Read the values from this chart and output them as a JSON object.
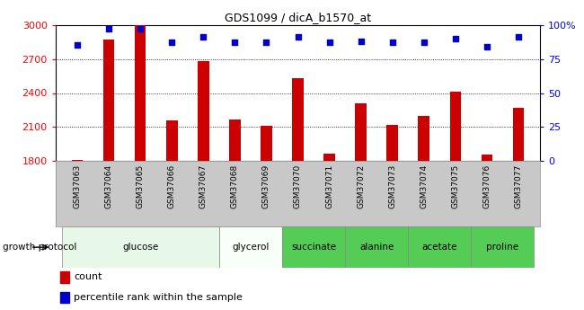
{
  "title": "GDS1099 / dicA_b1570_at",
  "samples": [
    "GSM37063",
    "GSM37064",
    "GSM37065",
    "GSM37066",
    "GSM37067",
    "GSM37068",
    "GSM37069",
    "GSM37070",
    "GSM37071",
    "GSM37072",
    "GSM37073",
    "GSM37074",
    "GSM37075",
    "GSM37076",
    "GSM37077"
  ],
  "counts": [
    1810,
    2870,
    3000,
    2160,
    2680,
    2170,
    2110,
    2530,
    1870,
    2310,
    2120,
    2200,
    2410,
    1855,
    2270
  ],
  "percentiles": [
    85,
    97,
    97,
    87,
    91,
    87,
    87,
    91,
    87,
    88,
    87,
    87,
    90,
    84,
    91
  ],
  "groups": [
    {
      "label": "glucose",
      "start": 0,
      "end": 5,
      "color": "#e8f8e8"
    },
    {
      "label": "glycerol",
      "start": 5,
      "end": 7,
      "color": "#f8fff8"
    },
    {
      "label": "succinate",
      "start": 7,
      "end": 9,
      "color": "#66dd66"
    },
    {
      "label": "alanine",
      "start": 9,
      "end": 11,
      "color": "#66dd66"
    },
    {
      "label": "acetate",
      "start": 11,
      "end": 13,
      "color": "#66dd66"
    },
    {
      "label": "proline",
      "start": 13,
      "end": 15,
      "color": "#66dd66"
    }
  ],
  "ylim_left": [
    1800,
    3000
  ],
  "ylim_right": [
    0,
    100
  ],
  "yticks_left": [
    1800,
    2100,
    2400,
    2700,
    3000
  ],
  "yticks_right": [
    0,
    25,
    50,
    75,
    100
  ],
  "bar_color": "#cc0000",
  "dot_color": "#0000cc",
  "grid_color": "#000000",
  "plot_bg": "#ffffff",
  "xtick_area_bg": "#c8c8c8",
  "growth_protocol_label": "growth protocol",
  "legend_count": "count",
  "legend_percentile": "percentile rank within the sample"
}
